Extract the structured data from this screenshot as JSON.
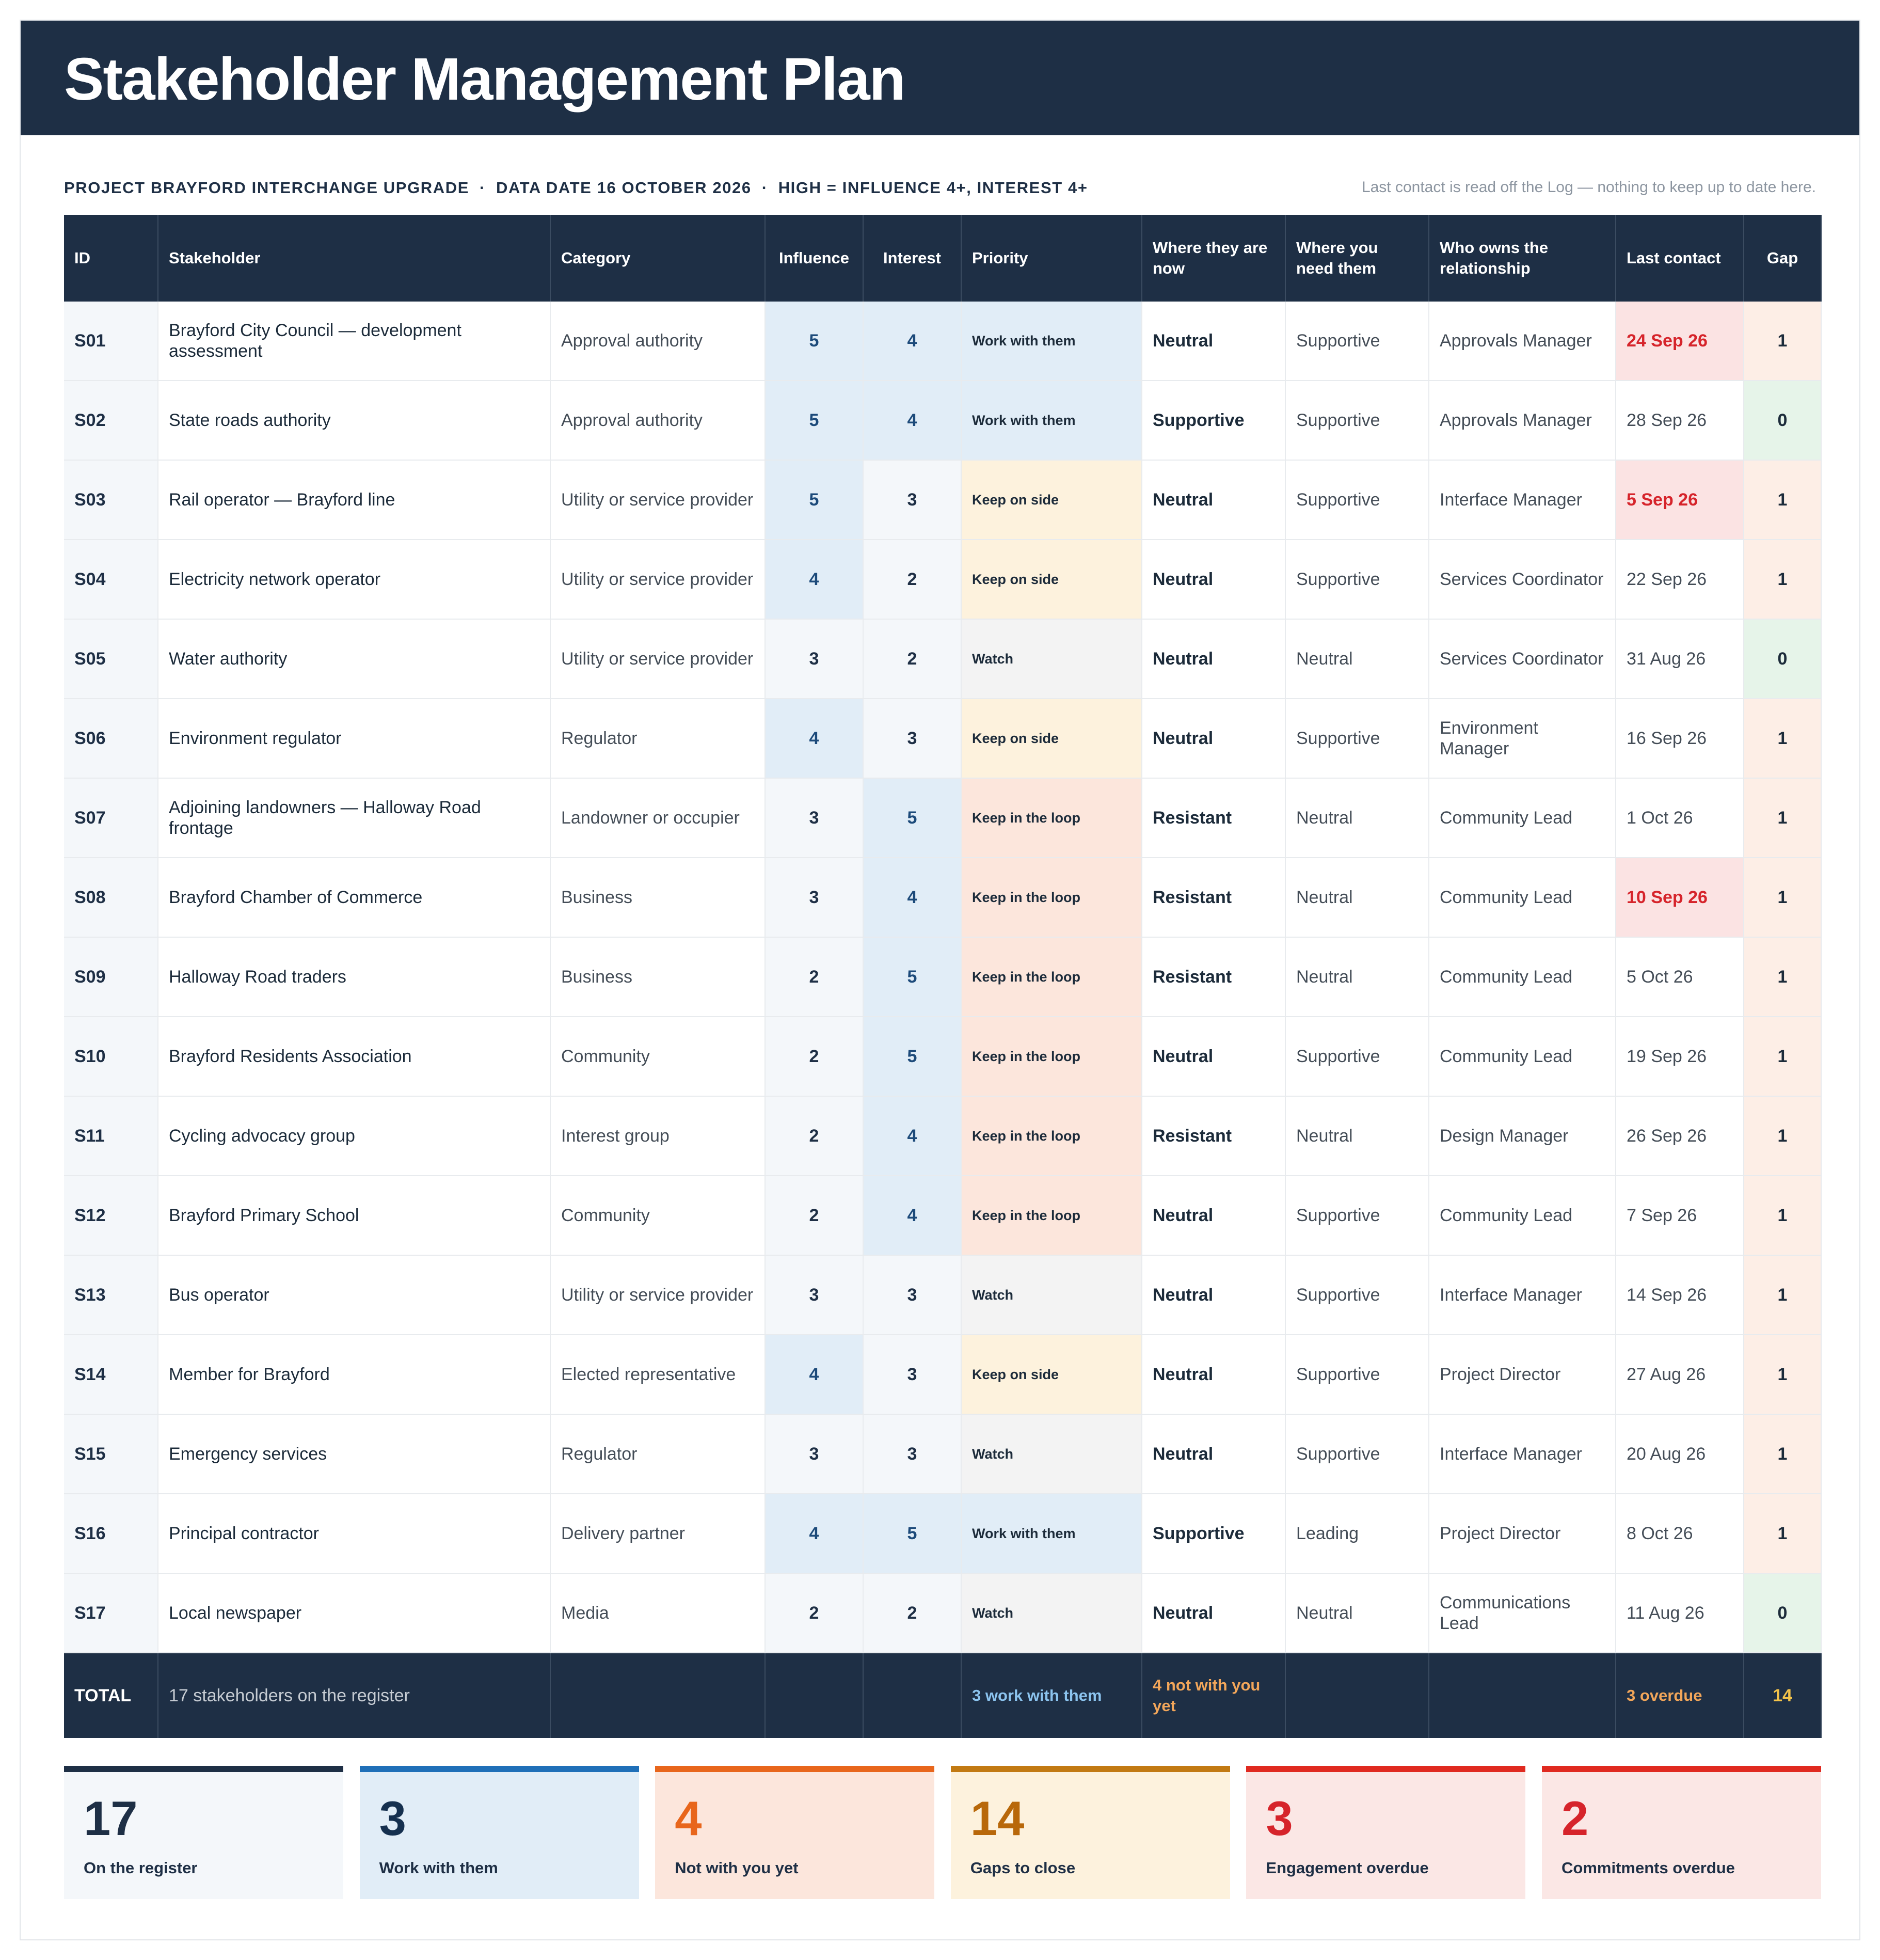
{
  "title": "Stakeholder Management Plan",
  "meta": {
    "project": "PROJECT  BRAYFORD INTERCHANGE UPGRADE",
    "data_date": "DATA DATE 16 OCTOBER 2026",
    "rule": "HIGH = INFLUENCE 4+, INTEREST 4+",
    "separator": "·",
    "note": "Last contact is read off the Log — nothing to keep up to date here."
  },
  "columns": [
    "ID",
    "Stakeholder",
    "Category",
    "Influence",
    "Interest",
    "Priority",
    "Where they are now",
    "Where you need them",
    "Who owns the relationship",
    "Last contact",
    "Gap"
  ],
  "rows": [
    {
      "id": "S01",
      "name": "Brayford City Council — development assessment",
      "category": "Approval authority",
      "influence": "5",
      "interest": "4",
      "priority": "Work with them",
      "now": "Neutral",
      "need": "Supportive",
      "owner": "Approvals Manager",
      "last": "24 Sep 26",
      "overdue": true,
      "gap": "1"
    },
    {
      "id": "S02",
      "name": "State roads authority",
      "category": "Approval authority",
      "influence": "5",
      "interest": "4",
      "priority": "Work with them",
      "now": "Supportive",
      "need": "Supportive",
      "owner": "Approvals Manager",
      "last": "28 Sep 26",
      "overdue": false,
      "gap": "0"
    },
    {
      "id": "S03",
      "name": "Rail operator — Brayford line",
      "category": "Utility or service provider",
      "influence": "5",
      "interest": "3",
      "priority": "Keep on side",
      "now": "Neutral",
      "need": "Supportive",
      "owner": "Interface Manager",
      "last": "5 Sep 26",
      "overdue": true,
      "gap": "1"
    },
    {
      "id": "S04",
      "name": "Electricity network operator",
      "category": "Utility or service provider",
      "influence": "4",
      "interest": "2",
      "priority": "Keep on side",
      "now": "Neutral",
      "need": "Supportive",
      "owner": "Services Coordinator",
      "last": "22 Sep 26",
      "overdue": false,
      "gap": "1"
    },
    {
      "id": "S05",
      "name": "Water authority",
      "category": "Utility or service provider",
      "influence": "3",
      "interest": "2",
      "priority": "Watch",
      "now": "Neutral",
      "need": "Neutral",
      "owner": "Services Coordinator",
      "last": "31 Aug 26",
      "overdue": false,
      "gap": "0"
    },
    {
      "id": "S06",
      "name": "Environment regulator",
      "category": "Regulator",
      "influence": "4",
      "interest": "3",
      "priority": "Keep on side",
      "now": "Neutral",
      "need": "Supportive",
      "owner": "Environment Manager",
      "last": "16 Sep 26",
      "overdue": false,
      "gap": "1"
    },
    {
      "id": "S07",
      "name": "Adjoining landowners — Halloway Road frontage",
      "category": "Landowner or occupier",
      "influence": "3",
      "interest": "5",
      "priority": "Keep in the loop",
      "now": "Resistant",
      "need": "Neutral",
      "owner": "Community Lead",
      "last": "1 Oct 26",
      "overdue": false,
      "gap": "1"
    },
    {
      "id": "S08",
      "name": "Brayford Chamber of Commerce",
      "category": "Business",
      "influence": "3",
      "interest": "4",
      "priority": "Keep in the loop",
      "now": "Resistant",
      "need": "Neutral",
      "owner": "Community Lead",
      "last": "10 Sep 26",
      "overdue": true,
      "gap": "1"
    },
    {
      "id": "S09",
      "name": "Halloway Road traders",
      "category": "Business",
      "influence": "2",
      "interest": "5",
      "priority": "Keep in the loop",
      "now": "Resistant",
      "need": "Neutral",
      "owner": "Community Lead",
      "last": "5 Oct 26",
      "overdue": false,
      "gap": "1"
    },
    {
      "id": "S10",
      "name": "Brayford Residents Association",
      "category": "Community",
      "influence": "2",
      "interest": "5",
      "priority": "Keep in the loop",
      "now": "Neutral",
      "need": "Supportive",
      "owner": "Community Lead",
      "last": "19 Sep 26",
      "overdue": false,
      "gap": "1"
    },
    {
      "id": "S11",
      "name": "Cycling advocacy group",
      "category": "Interest group",
      "influence": "2",
      "interest": "4",
      "priority": "Keep in the loop",
      "now": "Resistant",
      "need": "Neutral",
      "owner": "Design Manager",
      "last": "26 Sep 26",
      "overdue": false,
      "gap": "1"
    },
    {
      "id": "S12",
      "name": "Brayford Primary School",
      "category": "Community",
      "influence": "2",
      "interest": "4",
      "priority": "Keep in the loop",
      "now": "Neutral",
      "need": "Supportive",
      "owner": "Community Lead",
      "last": "7 Sep 26",
      "overdue": false,
      "gap": "1"
    },
    {
      "id": "S13",
      "name": "Bus operator",
      "category": "Utility or service provider",
      "influence": "3",
      "interest": "3",
      "priority": "Watch",
      "now": "Neutral",
      "need": "Supportive",
      "owner": "Interface Manager",
      "last": "14 Sep 26",
      "overdue": false,
      "gap": "1"
    },
    {
      "id": "S14",
      "name": "Member for Brayford",
      "category": "Elected representative",
      "influence": "4",
      "interest": "3",
      "priority": "Keep on side",
      "now": "Neutral",
      "need": "Supportive",
      "owner": "Project Director",
      "last": "27 Aug 26",
      "overdue": false,
      "gap": "1"
    },
    {
      "id": "S15",
      "name": "Emergency services",
      "category": "Regulator",
      "influence": "3",
      "interest": "3",
      "priority": "Watch",
      "now": "Neutral",
      "need": "Supportive",
      "owner": "Interface Manager",
      "last": "20 Aug 26",
      "overdue": false,
      "gap": "1"
    },
    {
      "id": "S16",
      "name": "Principal contractor",
      "category": "Delivery partner",
      "influence": "4",
      "interest": "5",
      "priority": "Work with them",
      "now": "Supportive",
      "need": "Leading",
      "owner": "Project Director",
      "last": "8 Oct 26",
      "overdue": false,
      "gap": "1"
    },
    {
      "id": "S17",
      "name": "Local newspaper",
      "category": "Media",
      "influence": "2",
      "interest": "2",
      "priority": "Watch",
      "now": "Neutral",
      "need": "Neutral",
      "owner": "Communications Lead",
      "last": "11 Aug 26",
      "overdue": false,
      "gap": "0"
    }
  ],
  "total": {
    "label": "TOTAL",
    "count": "17 stakeholders on the register",
    "work": "3 work with them",
    "not_with": "4 not with you yet",
    "overdue": "3 overdue",
    "gap": "14"
  },
  "cards": [
    {
      "value": "17",
      "label": "On the register",
      "accent": "#1e2f45",
      "bg": "#f4f7fa",
      "color": "#1e2f45"
    },
    {
      "value": "3",
      "label": "Work with them",
      "accent": "#1f6fb8",
      "bg": "#e1edf7",
      "color": "#15304f"
    },
    {
      "value": "4",
      "label": "Not with you yet",
      "accent": "#e8661c",
      "bg": "#fce6dc",
      "color": "#e8661c"
    },
    {
      "value": "14",
      "label": "Gaps to close",
      "accent": "#c27a12",
      "bg": "#fdf2dd",
      "color": "#b8680a"
    },
    {
      "value": "3",
      "label": "Engagement overdue",
      "accent": "#e02a20",
      "bg": "#fbe7e5",
      "color": "#d6242b"
    },
    {
      "value": "2",
      "label": "Commitments overdue",
      "accent": "#e02a20",
      "bg": "#fbe7e5",
      "color": "#d6242b"
    }
  ]
}
